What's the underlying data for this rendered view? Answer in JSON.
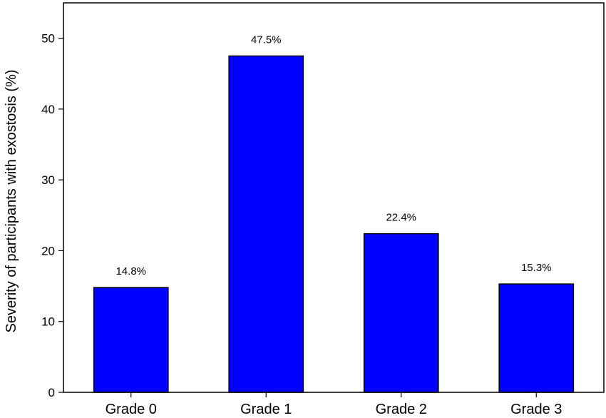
{
  "chart_data": {
    "type": "bar",
    "categories": [
      "Grade 0",
      "Grade 1",
      "Grade 2",
      "Grade 3"
    ],
    "values": [
      14.8,
      47.5,
      22.4,
      15.3
    ],
    "data_labels": [
      "14.8%",
      "47.5%",
      "22.4%",
      "15.3%"
    ],
    "title": "",
    "xlabel": "",
    "ylabel": "Severity of participants with exostosis (%)",
    "ylim": [
      0,
      55
    ],
    "yticks": [
      0,
      10,
      20,
      30,
      40,
      50
    ],
    "grid": false,
    "bar_color": "#0000FF",
    "bar_edge_color": "#000000"
  }
}
